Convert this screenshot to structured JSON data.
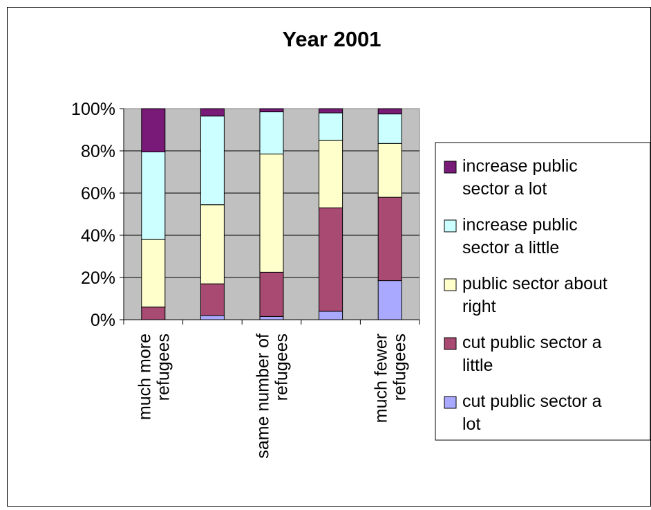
{
  "chart_data": {
    "type": "bar",
    "stacked": "percent",
    "title": "Year 2001",
    "xlabel": "",
    "ylabel": "",
    "ylim": [
      0,
      100
    ],
    "yticks": [
      "0%",
      "20%",
      "40%",
      "60%",
      "80%",
      "100%"
    ],
    "categories": [
      [
        "much more",
        "refugees"
      ],
      [],
      [
        "same number of",
        "refugees"
      ],
      [],
      [
        "much fewer",
        "refugees"
      ]
    ],
    "series": [
      {
        "name": "cut public sector a lot",
        "color": "#a9a9ff",
        "values": [
          0,
          2,
          1.5,
          4,
          18.5
        ]
      },
      {
        "name": "cut public sector a little",
        "color": "#a84a72",
        "values": [
          6,
          15,
          21,
          49,
          39.5
        ]
      },
      {
        "name": "public sector about right",
        "color": "#ffffcc",
        "values": [
          32,
          37.5,
          56,
          32,
          25.5
        ]
      },
      {
        "name": "increase public sector a little",
        "color": "#ccffff",
        "values": [
          41.5,
          42,
          20,
          13,
          14
        ]
      },
      {
        "name": "increase public sector a lot",
        "color": "#7a1a78",
        "values": [
          20.5,
          3.5,
          1.5,
          2,
          2.5
        ]
      }
    ],
    "plot_background": "#c0c0c0",
    "grid": true,
    "legend_position": "right",
    "legend": [
      {
        "lines": [
          "increase public",
          "sector a lot"
        ],
        "color": "#7a1a78"
      },
      {
        "lines": [
          "increase public",
          "sector a little"
        ],
        "color": "#ccffff"
      },
      {
        "lines": [
          "public sector about",
          "right"
        ],
        "color": "#ffffcc"
      },
      {
        "lines": [
          "cut public sector a",
          "little"
        ],
        "color": "#a84a72"
      },
      {
        "lines": [
          "cut public sector a",
          "lot"
        ],
        "color": "#a9a9ff"
      }
    ]
  }
}
